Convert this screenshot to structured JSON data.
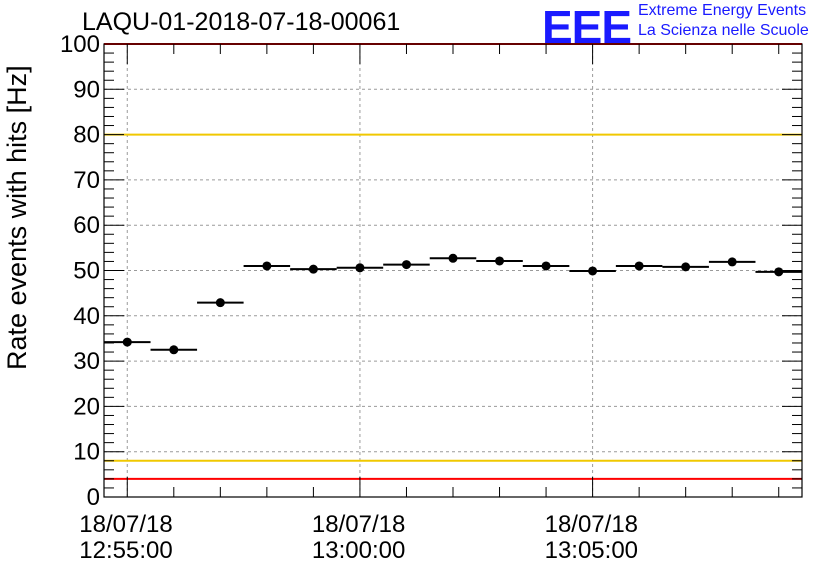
{
  "chart_data": {
    "type": "scatter",
    "title": "LAQU-01-2018-07-18-00061",
    "ylabel": "Rate events with hits [Hz]",
    "xlabel": "",
    "ylim": [
      0,
      100
    ],
    "y_ticks": [
      0,
      10,
      20,
      30,
      40,
      50,
      60,
      70,
      80,
      90,
      100
    ],
    "x_ticks": [
      {
        "date": "18/07/18",
        "time": "12:55:00",
        "minute": 0
      },
      {
        "date": "18/07/18",
        "time": "13:00:00",
        "minute": 5
      },
      {
        "date": "18/07/18",
        "time": "13:05:00",
        "minute": 10
      }
    ],
    "xlim_minutes": [
      -0.5,
      14.5
    ],
    "bin_width_minutes": 1,
    "grid": true,
    "reference_lines": [
      {
        "y": 100,
        "color": "#ff0000"
      },
      {
        "y": 80,
        "color": "#f0c800"
      },
      {
        "y": 8,
        "color": "#f0c800"
      },
      {
        "y": 4,
        "color": "#ff0000"
      }
    ],
    "series": [
      {
        "x_minutes": [
          0,
          1,
          2,
          3,
          4,
          5,
          6,
          7,
          8,
          9,
          10,
          11,
          12,
          13,
          14
        ],
        "values": [
          34.2,
          32.5,
          42.9,
          51.0,
          50.3,
          50.6,
          51.3,
          52.7,
          52.1,
          51.0,
          49.9,
          51.0,
          50.8,
          51.9,
          49.7
        ]
      }
    ]
  },
  "logo": {
    "mark": "EEE",
    "line1": "Extreme Energy Events",
    "line2": "La Scienza nelle Scuole"
  }
}
